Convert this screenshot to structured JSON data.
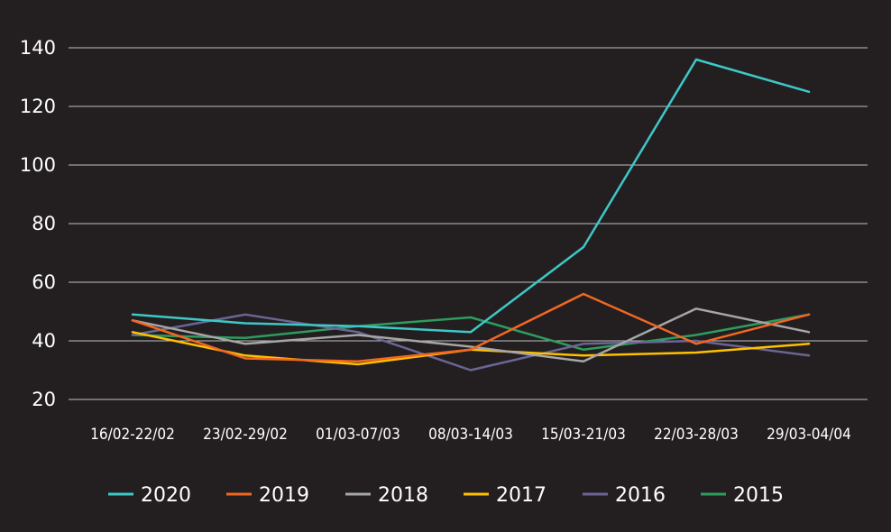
{
  "chart_data": {
    "type": "line",
    "title": "",
    "xlabel": "",
    "ylabel": "",
    "categories": [
      "16/02-22/02",
      "23/02-29/02",
      "01/03-07/03",
      "08/03-14/03",
      "15/03-21/03",
      "22/03-28/03",
      "29/03-04/04"
    ],
    "ylim": [
      20,
      140
    ],
    "yticks": [
      20,
      40,
      60,
      80,
      100,
      120,
      140
    ],
    "grid": true,
    "legend_position": "bottom",
    "background_color": "#231f20",
    "grid_color": "#bfbfbf",
    "series": [
      {
        "name": "2020",
        "color": "#3ec8c8",
        "values": [
          49,
          46,
          45,
          43,
          72,
          136,
          125
        ]
      },
      {
        "name": "2019",
        "color": "#f26722",
        "values": [
          47,
          34,
          33,
          37,
          56,
          39,
          49
        ]
      },
      {
        "name": "2018",
        "color": "#a6a6a6",
        "values": [
          47,
          39,
          42,
          38,
          33,
          51,
          43
        ]
      },
      {
        "name": "2017",
        "color": "#ffc000",
        "values": [
          43,
          35,
          32,
          37,
          35,
          36,
          39
        ]
      },
      {
        "name": "2016",
        "color": "#6b6596",
        "values": [
          42,
          49,
          43,
          30,
          39,
          40,
          35
        ]
      },
      {
        "name": "2015",
        "color": "#2e9c5e",
        "values": [
          42,
          41,
          45,
          48,
          37,
          42,
          49
        ]
      }
    ]
  }
}
